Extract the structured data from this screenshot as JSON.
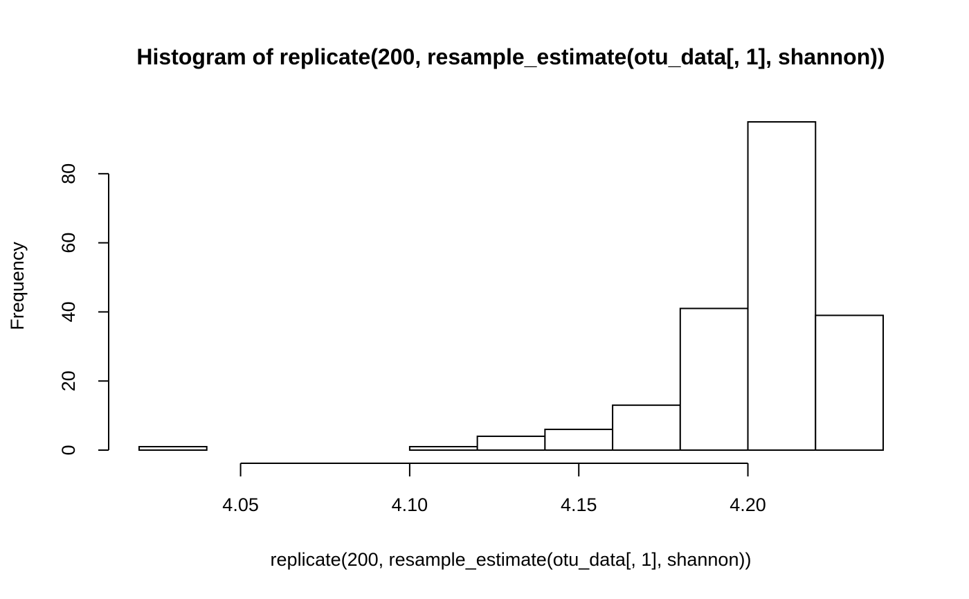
{
  "chart_data": {
    "type": "bar",
    "subtype": "histogram",
    "title": "Histogram of replicate(200, resample_estimate(otu_data[, 1], shannon))",
    "xlabel": "replicate(200, resample_estimate(otu_data[, 1], shannon))",
    "ylabel": "Frequency",
    "bins": [
      {
        "x0": 4.02,
        "x1": 4.04,
        "count": 1
      },
      {
        "x0": 4.04,
        "x1": 4.06,
        "count": 0
      },
      {
        "x0": 4.06,
        "x1": 4.08,
        "count": 0
      },
      {
        "x0": 4.08,
        "x1": 4.1,
        "count": 0
      },
      {
        "x0": 4.1,
        "x1": 4.12,
        "count": 1
      },
      {
        "x0": 4.12,
        "x1": 4.14,
        "count": 4
      },
      {
        "x0": 4.14,
        "x1": 4.16,
        "count": 6
      },
      {
        "x0": 4.16,
        "x1": 4.18,
        "count": 13
      },
      {
        "x0": 4.18,
        "x1": 4.2,
        "count": 41
      },
      {
        "x0": 4.2,
        "x1": 4.22,
        "count": 95
      },
      {
        "x0": 4.22,
        "x1": 4.24,
        "count": 39
      }
    ],
    "xlim": [
      4.02,
      4.24
    ],
    "ylim": [
      0,
      95
    ],
    "x_ticks": [
      4.05,
      4.1,
      4.15,
      4.2
    ],
    "x_tick_labels": [
      "4.05",
      "4.10",
      "4.15",
      "4.20"
    ],
    "y_ticks": [
      0,
      20,
      40,
      60,
      80
    ],
    "y_tick_labels": [
      "0",
      "20",
      "40",
      "60",
      "80"
    ],
    "grid": false,
    "bar_fill": "#ffffff",
    "bar_stroke": "#000000"
  }
}
